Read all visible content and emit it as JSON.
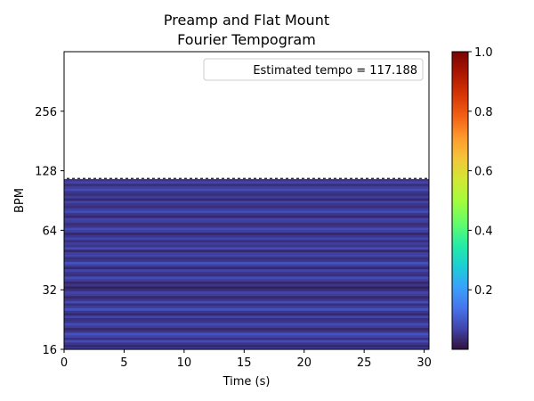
{
  "chart_data": {
    "type": "heatmap",
    "title_lines": [
      "Preamp and Flat Mount",
      "Fourier Tempogram"
    ],
    "xlabel": "Time (s)",
    "ylabel": "BPM",
    "x_ticks": [
      0,
      5,
      10,
      15,
      20,
      25,
      30
    ],
    "y_ticks": [
      16,
      32,
      64,
      128,
      256
    ],
    "xlim": [
      0,
      30.4
    ],
    "ylim": [
      16,
      512
    ],
    "y_scale": "log2",
    "data_extent": {
      "x": [
        0,
        30.4
      ],
      "bpm": [
        16,
        117.188
      ]
    },
    "estimated_tempo": 117.188,
    "legend_label": "Estimated tempo = 117.188",
    "legend_position": "top-right",
    "colormap": "turbo",
    "colorbar": {
      "min": 0,
      "max": 1,
      "ticks": [
        0.2,
        0.4,
        0.6,
        0.8,
        1.0
      ],
      "tick_labels": [
        "0.2",
        "0.4",
        "0.6",
        "0.8",
        "1.0"
      ]
    },
    "band_intensity_low_to_high_bpm": [
      0.06,
      0.03,
      0.05,
      0.08,
      0.04,
      0.07,
      0.09,
      0.05,
      0.03,
      0.06,
      0.08,
      0.05,
      0.04,
      0.07,
      0.03,
      0.05,
      0.09,
      0.06,
      0.04,
      0.08,
      0.05,
      0.03,
      0.06,
      0.07,
      0.04,
      0.02,
      0.05,
      0.03,
      0.06,
      0.08,
      0.04,
      0.05,
      0.07,
      0.03,
      0.06,
      0.09,
      0.05,
      0.04,
      0.07,
      0.06,
      0.03,
      0.08,
      0.05,
      0.06,
      0.04,
      0.07,
      0.05,
      0.03,
      0.06,
      0.08,
      0.05,
      0.04,
      0.06,
      0.07,
      0.03,
      0.05,
      0.08,
      0.06,
      0.04,
      0.05,
      0.07,
      0.03,
      0.06,
      0.04,
      0.05,
      0.08,
      0.06,
      0.04,
      0.07,
      0.05
    ]
  }
}
